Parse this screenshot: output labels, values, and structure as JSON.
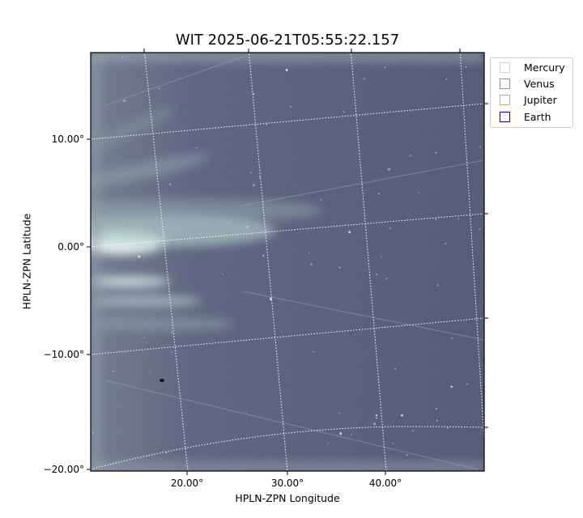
{
  "chart_data": {
    "type": "heatmap",
    "title": "WIT 2025-06-21T05:55:22.157",
    "xlabel": "HPLN-ZPN Longitude",
    "ylabel": "HPLN-ZPN Latitude",
    "x_ticks": [
      "20.00°",
      "30.00°",
      "40.00°"
    ],
    "y_ticks": [
      "10.00°",
      "0.00°",
      "−10.00°",
      "−20.00°"
    ],
    "grid": "dotted white coordinate grid",
    "colormap": "bone",
    "legend_placement": "outside upper-right",
    "legend": [
      {
        "name": "Mercury",
        "color": "#d3d3d3"
      },
      {
        "name": "Venus",
        "color": "#cd853f"
      },
      {
        "name": "Jupiter",
        "color": "#ffa500"
      },
      {
        "name": "Earth",
        "color": "#0000ff"
      }
    ]
  }
}
